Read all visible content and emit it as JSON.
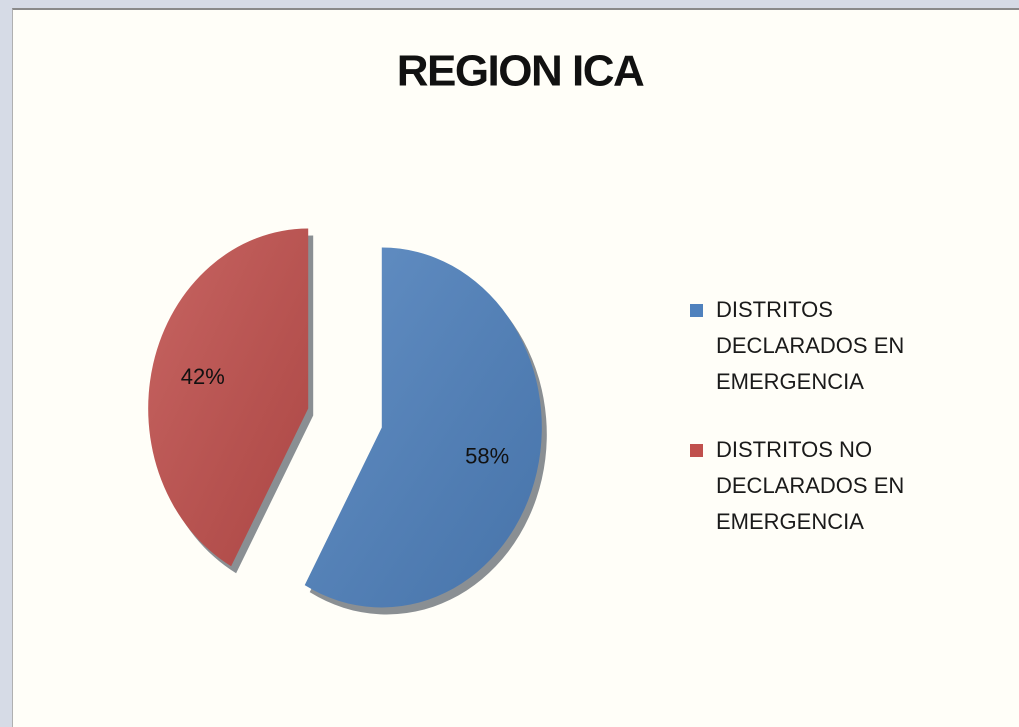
{
  "chart_data": {
    "type": "pie",
    "title": "REGION ICA",
    "categories": [
      "DISTRITOS DECLARADOS EN EMERGENCIA",
      "DISTRITOS NO DECLARADOS EN EMERGENCIA"
    ],
    "values": [
      58,
      42
    ],
    "value_labels": [
      "58%",
      "42%"
    ],
    "colors": [
      "#4f81bd",
      "#c0504d"
    ],
    "legend": "right"
  }
}
